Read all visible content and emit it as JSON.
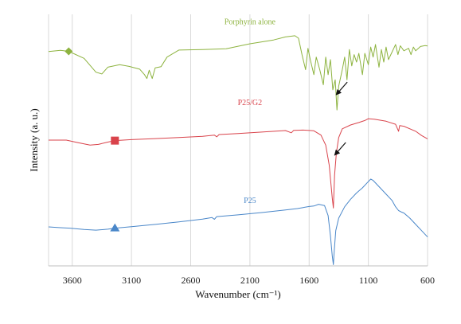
{
  "chart_data": {
    "type": "line",
    "title": "",
    "xlabel": "Wavenumber (cm⁻¹)",
    "ylabel": "Intensity (a. u.)",
    "x_reversed": true,
    "xlim": [
      3800,
      600
    ],
    "ylim": [
      0,
      1
    ],
    "x_ticks": [
      3600,
      3100,
      2600,
      2100,
      1600,
      1100,
      600
    ],
    "x_tick_labels": [
      "3600",
      "3100",
      "2600",
      "2100",
      "1600",
      "1100",
      "600"
    ],
    "y_ticks_shown": false,
    "grid": true,
    "grid_color": "#d9d9d9",
    "series": [
      {
        "name": "Porphyrin alone",
        "color": "#8db33f",
        "marker": "diamond",
        "marker_x": 3630,
        "label_x": 2100,
        "label_y": 0.96,
        "arrow": {
          "x": 1372,
          "y": 0.68
        },
        "points": [
          [
            3800,
            0.852
          ],
          [
            3700,
            0.857
          ],
          [
            3630,
            0.853
          ],
          [
            3500,
            0.825
          ],
          [
            3400,
            0.77
          ],
          [
            3350,
            0.763
          ],
          [
            3300,
            0.79
          ],
          [
            3200,
            0.8
          ],
          [
            3120,
            0.793
          ],
          [
            3030,
            0.782
          ],
          [
            2990,
            0.76
          ],
          [
            2970,
            0.745
          ],
          [
            2950,
            0.778
          ],
          [
            2925,
            0.745
          ],
          [
            2900,
            0.787
          ],
          [
            2850,
            0.792
          ],
          [
            2800,
            0.83
          ],
          [
            2700,
            0.858
          ],
          [
            2500,
            0.86
          ],
          [
            2300,
            0.863
          ],
          [
            2100,
            0.883
          ],
          [
            1900,
            0.898
          ],
          [
            1800,
            0.91
          ],
          [
            1720,
            0.915
          ],
          [
            1690,
            0.905
          ],
          [
            1660,
            0.84
          ],
          [
            1630,
            0.78
          ],
          [
            1610,
            0.865
          ],
          [
            1590,
            0.82
          ],
          [
            1560,
            0.76
          ],
          [
            1540,
            0.83
          ],
          [
            1510,
            0.78
          ],
          [
            1480,
            0.72
          ],
          [
            1460,
            0.83
          ],
          [
            1440,
            0.76
          ],
          [
            1420,
            0.82
          ],
          [
            1400,
            0.7
          ],
          [
            1380,
            0.74
          ],
          [
            1365,
            0.62
          ],
          [
            1350,
            0.715
          ],
          [
            1320,
            0.78
          ],
          [
            1300,
            0.83
          ],
          [
            1280,
            0.74
          ],
          [
            1260,
            0.86
          ],
          [
            1240,
            0.795
          ],
          [
            1220,
            0.84
          ],
          [
            1200,
            0.81
          ],
          [
            1180,
            0.845
          ],
          [
            1150,
            0.76
          ],
          [
            1130,
            0.845
          ],
          [
            1100,
            0.8
          ],
          [
            1080,
            0.87
          ],
          [
            1060,
            0.83
          ],
          [
            1040,
            0.88
          ],
          [
            1010,
            0.79
          ],
          [
            990,
            0.86
          ],
          [
            970,
            0.81
          ],
          [
            950,
            0.87
          ],
          [
            930,
            0.82
          ],
          [
            900,
            0.85
          ],
          [
            870,
            0.88
          ],
          [
            850,
            0.84
          ],
          [
            830,
            0.875
          ],
          [
            800,
            0.855
          ],
          [
            760,
            0.865
          ],
          [
            740,
            0.84
          ],
          [
            720,
            0.87
          ],
          [
            700,
            0.855
          ],
          [
            660,
            0.872
          ],
          [
            620,
            0.876
          ],
          [
            600,
            0.874
          ]
        ]
      },
      {
        "name": "P25/G2",
        "color": "#d9434b",
        "marker": "square",
        "marker_x": 3240,
        "label_x": 2100,
        "label_y": 0.64,
        "arrow": {
          "x": 1385,
          "y": 0.44
        },
        "points": [
          [
            3800,
            0.5
          ],
          [
            3650,
            0.5
          ],
          [
            3550,
            0.49
          ],
          [
            3450,
            0.48
          ],
          [
            3380,
            0.483
          ],
          [
            3300,
            0.492
          ],
          [
            3240,
            0.498
          ],
          [
            3100,
            0.502
          ],
          [
            2900,
            0.506
          ],
          [
            2700,
            0.51
          ],
          [
            2500,
            0.515
          ],
          [
            2400,
            0.52
          ],
          [
            2380,
            0.513
          ],
          [
            2360,
            0.522
          ],
          [
            2200,
            0.526
          ],
          [
            2000,
            0.532
          ],
          [
            1800,
            0.538
          ],
          [
            1750,
            0.529
          ],
          [
            1730,
            0.539
          ],
          [
            1650,
            0.54
          ],
          [
            1560,
            0.537
          ],
          [
            1500,
            0.52
          ],
          [
            1460,
            0.48
          ],
          [
            1430,
            0.4
          ],
          [
            1405,
            0.27
          ],
          [
            1395,
            0.23
          ],
          [
            1385,
            0.36
          ],
          [
            1370,
            0.45
          ],
          [
            1350,
            0.51
          ],
          [
            1320,
            0.545
          ],
          [
            1250,
            0.56
          ],
          [
            1180,
            0.57
          ],
          [
            1130,
            0.578
          ],
          [
            1100,
            0.585
          ],
          [
            1050,
            0.583
          ],
          [
            950,
            0.575
          ],
          [
            870,
            0.563
          ],
          [
            845,
            0.535
          ],
          [
            835,
            0.558
          ],
          [
            800,
            0.555
          ],
          [
            700,
            0.535
          ],
          [
            650,
            0.518
          ],
          [
            600,
            0.505
          ]
        ]
      },
      {
        "name": "P25",
        "color": "#4a87c9",
        "marker": "triangle",
        "marker_x": 3240,
        "label_x": 2100,
        "label_y": 0.25,
        "arrow": null,
        "points": [
          [
            3800,
            0.155
          ],
          [
            3700,
            0.152
          ],
          [
            3620,
            0.15
          ],
          [
            3500,
            0.145
          ],
          [
            3400,
            0.142
          ],
          [
            3300,
            0.146
          ],
          [
            3240,
            0.15
          ],
          [
            3100,
            0.156
          ],
          [
            2900,
            0.165
          ],
          [
            2700,
            0.175
          ],
          [
            2500,
            0.186
          ],
          [
            2420,
            0.192
          ],
          [
            2400,
            0.185
          ],
          [
            2380,
            0.196
          ],
          [
            2200,
            0.203
          ],
          [
            2000,
            0.212
          ],
          [
            1800,
            0.222
          ],
          [
            1700,
            0.228
          ],
          [
            1650,
            0.232
          ],
          [
            1600,
            0.236
          ],
          [
            1560,
            0.238
          ],
          [
            1520,
            0.245
          ],
          [
            1470,
            0.24
          ],
          [
            1440,
            0.2
          ],
          [
            1420,
            0.12
          ],
          [
            1405,
            0.04
          ],
          [
            1395,
            0.005
          ],
          [
            1388,
            0.06
          ],
          [
            1375,
            0.14
          ],
          [
            1350,
            0.19
          ],
          [
            1300,
            0.235
          ],
          [
            1250,
            0.265
          ],
          [
            1200,
            0.29
          ],
          [
            1150,
            0.31
          ],
          [
            1110,
            0.33
          ],
          [
            1080,
            0.345
          ],
          [
            1060,
            0.34
          ],
          [
            1000,
            0.31
          ],
          [
            950,
            0.285
          ],
          [
            900,
            0.26
          ],
          [
            870,
            0.235
          ],
          [
            845,
            0.22
          ],
          [
            820,
            0.214
          ],
          [
            800,
            0.21
          ],
          [
            750,
            0.19
          ],
          [
            700,
            0.165
          ],
          [
            650,
            0.14
          ],
          [
            600,
            0.115
          ]
        ]
      }
    ]
  }
}
